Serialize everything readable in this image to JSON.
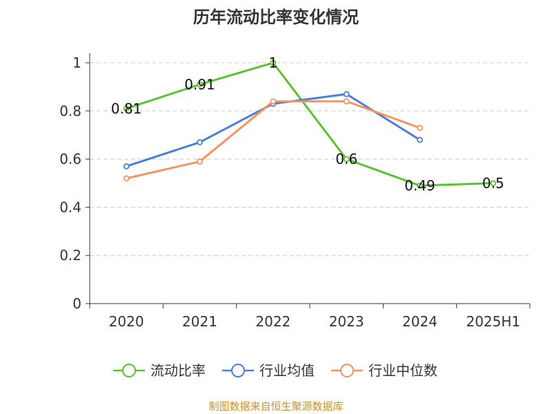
{
  "chart_data": {
    "type": "line",
    "title": "历年流动比率变化情况",
    "categories": [
      "2020",
      "2021",
      "2022",
      "2023",
      "2024",
      "2025H1"
    ],
    "ylim": [
      0,
      1
    ],
    "yticks": [
      "0",
      "0.2",
      "0.4",
      "0.6",
      "0.8",
      "1"
    ],
    "grid": true,
    "legend_position": "bottom",
    "series": [
      {
        "name": "流动比率",
        "color": "#5bc12f",
        "values": [
          0.81,
          0.91,
          1.0,
          0.6,
          0.49,
          0.5
        ],
        "labels": [
          "0.81",
          "0.91",
          "1",
          "0.6",
          "0.49",
          "0.5"
        ]
      },
      {
        "name": "行业均值",
        "color": "#4a7fd6",
        "values": [
          0.57,
          0.67,
          0.83,
          0.87,
          0.68,
          null
        ]
      },
      {
        "name": "行业中位数",
        "color": "#f5925e",
        "values": [
          0.52,
          0.59,
          0.84,
          0.84,
          0.73,
          null
        ]
      }
    ]
  },
  "footer": {
    "source": "制图数据来自恒生聚源数据库"
  }
}
